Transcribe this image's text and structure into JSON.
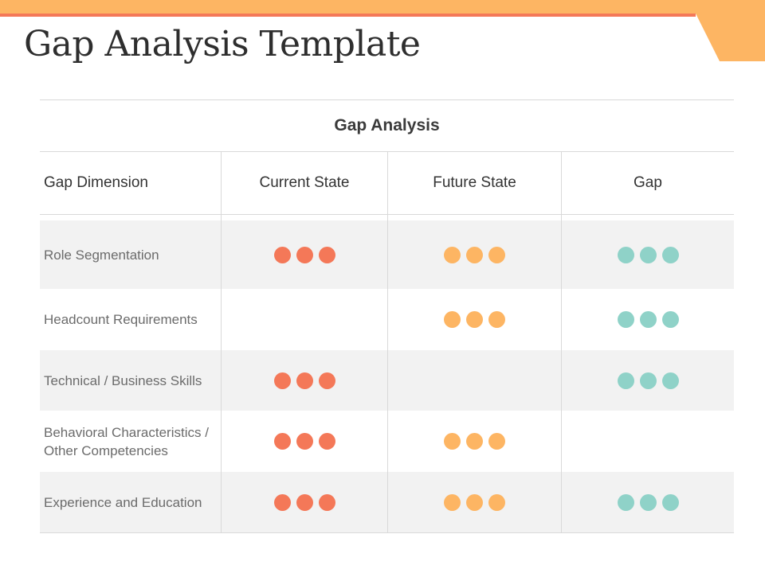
{
  "page": {
    "title": "Gap Analysis Template"
  },
  "table": {
    "caption": "Gap Analysis",
    "headers": [
      "Gap Dimension",
      "Current State",
      "Future State",
      "Gap"
    ],
    "rows": [
      {
        "label": "Role Segmentation",
        "current": 3,
        "future": 3,
        "gap": 3
      },
      {
        "label": "Headcount Requirements",
        "current": 0,
        "future": 3,
        "gap": 3
      },
      {
        "label": "Technical / Business Skills",
        "current": 3,
        "future": 0,
        "gap": 3
      },
      {
        "label": "Behavioral Characteristics / Other Competencies",
        "current": 3,
        "future": 3,
        "gap": 0
      },
      {
        "label": "Experience and Education",
        "current": 3,
        "future": 3,
        "gap": 3
      }
    ]
  },
  "colors": {
    "current_dot": "#f47858",
    "future_dot": "#fdb563",
    "gap_dot": "#8fd2c8",
    "top_band": "#fdb563",
    "accent_line": "#f47858"
  }
}
